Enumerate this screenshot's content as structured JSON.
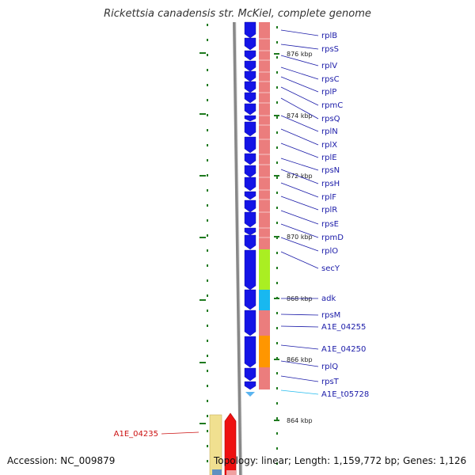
{
  "title": "Rickettsia canadensis str. McKiel, complete genome",
  "accession": "Accession: NC_009879",
  "summary": "Topology: linear; Length: 1,159,772 bp; Genes: 1,126",
  "colors": {
    "forward_arrow": "#1414e6",
    "rna_arrow": "#5ab4f0",
    "ribosomal_band": "#eb7d7d",
    "secY_band": "#aaee22",
    "adk_band": "#18b8f0",
    "A1E_04250_band": "#ff9600",
    "tick_green": "#1f7a1f",
    "left_gene_label": "#cc1111",
    "lower_beige": "#f0e090",
    "lower_red": "#ee1111"
  },
  "scale_labels": [
    "876 kbp",
    "874 kbp",
    "872 kbp",
    "870 kbp",
    "868 kbp",
    "866 kbp",
    "864 kbp"
  ],
  "genes": [
    {
      "name": "rplB",
      "color": "#1a1aa8"
    },
    {
      "name": "rpsS",
      "color": "#1a1aa8"
    },
    {
      "name": "rplV",
      "color": "#1a1aa8"
    },
    {
      "name": "rpsC",
      "color": "#1a1aa8"
    },
    {
      "name": "rplP",
      "color": "#1a1aa8"
    },
    {
      "name": "rpmC",
      "color": "#1a1aa8"
    },
    {
      "name": "rpsQ",
      "color": "#1a1aa8"
    },
    {
      "name": "rplN",
      "color": "#1a1aa8"
    },
    {
      "name": "rplX",
      "color": "#1a1aa8"
    },
    {
      "name": "rplE",
      "color": "#1a1aa8"
    },
    {
      "name": "rpsN",
      "color": "#1a1aa8"
    },
    {
      "name": "rpsH",
      "color": "#1a1aa8"
    },
    {
      "name": "rplF",
      "color": "#1a1aa8"
    },
    {
      "name": "rplR",
      "color": "#1a1aa8"
    },
    {
      "name": "rpsE",
      "color": "#1a1aa8"
    },
    {
      "name": "rpmD",
      "color": "#1a1aa8"
    },
    {
      "name": "rplO",
      "color": "#1a1aa8"
    },
    {
      "name": "secY",
      "color": "#1a1aa8"
    },
    {
      "name": "adk",
      "color": "#1a1aa8"
    },
    {
      "name": "rpsM",
      "color": "#1a1aa8"
    },
    {
      "name": "A1E_04255",
      "color": "#1a1aa8"
    },
    {
      "name": "A1E_04250",
      "color": "#1a1aa8"
    },
    {
      "name": "rplQ",
      "color": "#1a1aa8"
    },
    {
      "name": "rpsT",
      "color": "#1a1aa8"
    },
    {
      "name": "A1E_t05728",
      "color": "#22bbee"
    }
  ],
  "left_gene": {
    "name": "A1E_04235"
  }
}
